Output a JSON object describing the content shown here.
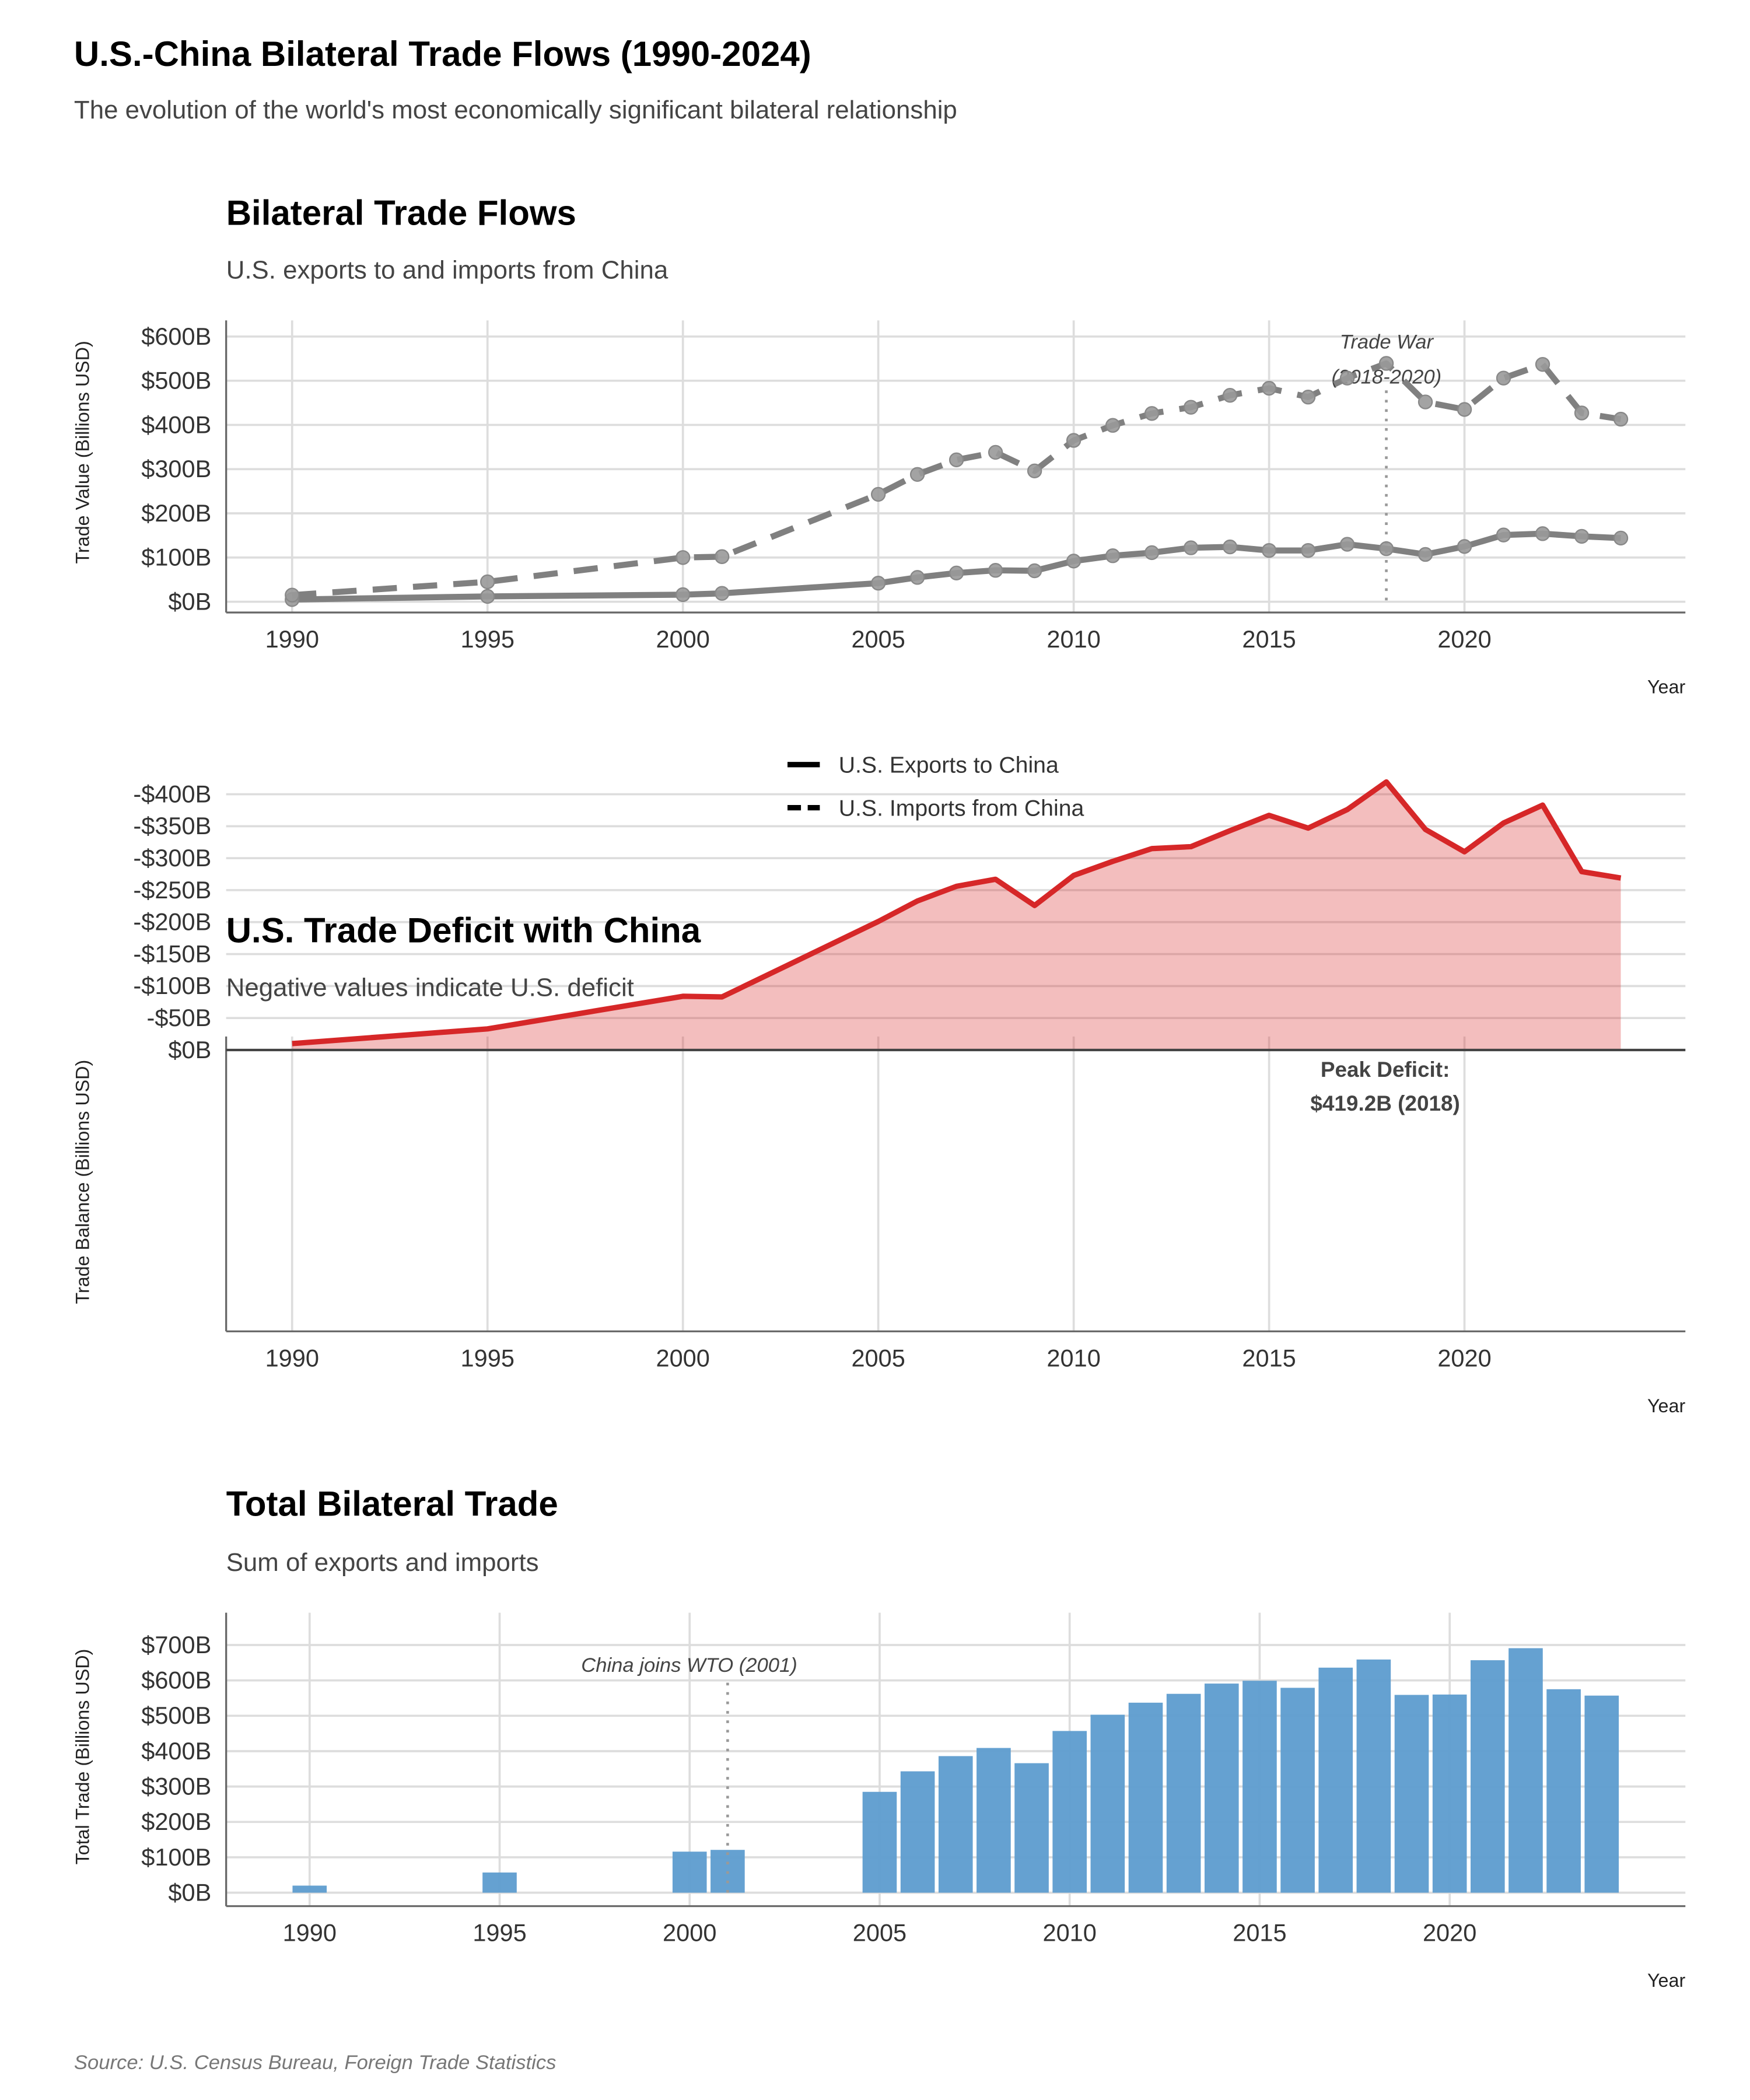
{
  "title": "U.S.-China Bilateral Trade Flows (1990-2024)",
  "subtitle": "The evolution of the world's most economically significant bilateral relationship",
  "source": "Source: U.S. Census Bureau, Foreign Trade Statistics",
  "colors": {
    "trade_lines": "#808080",
    "deficit_line": "#d62728",
    "deficit_fill": "#f2bfbf",
    "bars": "#5d9ccf"
  },
  "chart_data": [
    {
      "type": "line",
      "title": "Bilateral Trade Flows",
      "subtitle": "U.S. exports to and imports from China",
      "xlabel": "Year",
      "ylabel": "Trade Value (Billions USD)",
      "ylim": [
        0,
        600
      ],
      "yticks": [
        "$0B",
        "$100B",
        "$200B",
        "$300B",
        "$400B",
        "$500B",
        "$600B"
      ],
      "xticks": [
        "1990",
        "1995",
        "2000",
        "2005",
        "2010",
        "2015",
        "2020"
      ],
      "grid": true,
      "legend_position": "bottom",
      "x": [
        1990,
        1995,
        2000,
        2001,
        2005,
        2006,
        2007,
        2008,
        2009,
        2010,
        2011,
        2012,
        2013,
        2014,
        2015,
        2016,
        2017,
        2018,
        2019,
        2020,
        2021,
        2022,
        2023,
        2024
      ],
      "series": [
        {
          "name": "U.S. Exports to China",
          "style": "solid",
          "values": [
            5,
            12,
            16,
            19,
            42,
            55,
            65,
            71,
            70,
            92,
            104,
            111,
            122,
            124,
            116,
            116,
            130,
            120,
            107,
            125,
            151,
            154,
            148,
            144
          ]
        },
        {
          "name": "U.S. Imports from China",
          "style": "dashed",
          "values": [
            15,
            45,
            100,
            102,
            243,
            288,
            321,
            338,
            296,
            365,
            399,
            426,
            440,
            467,
            483,
            463,
            506,
            539.2,
            452,
            435,
            506,
            537,
            427,
            413
          ]
        }
      ],
      "annotation": {
        "text_line1": "Trade War",
        "text_line2": "(2018-2020)",
        "x": 2018
      }
    },
    {
      "type": "area",
      "title": "U.S. Trade Deficit with China",
      "subtitle": "Negative values indicate U.S. deficit",
      "xlabel": "Year",
      "ylabel": "Trade Balance (Billions USD)",
      "ylim": [
        -420,
        0
      ],
      "yticks": [
        "$0B",
        "-$50B",
        "-$100B",
        "-$150B",
        "-$200B",
        "-$250B",
        "-$300B",
        "-$350B",
        "-$400B"
      ],
      "xticks": [
        "1990",
        "1995",
        "2000",
        "2005",
        "2010",
        "2015",
        "2020"
      ],
      "grid": true,
      "x": [
        1990,
        1995,
        2000,
        2001,
        2005,
        2006,
        2007,
        2008,
        2009,
        2010,
        2011,
        2012,
        2013,
        2014,
        2015,
        2016,
        2017,
        2018,
        2019,
        2020,
        2021,
        2022,
        2023,
        2024
      ],
      "values": [
        -10,
        -33,
        -84,
        -83,
        -201,
        -233,
        -256,
        -267,
        -226,
        -273,
        -295,
        -315,
        -318,
        -343,
        -367,
        -347,
        -376,
        -419.2,
        -345,
        -310,
        -355,
        -383,
        -279,
        -269
      ],
      "annotation": {
        "text_line1": "Peak Deficit:",
        "text_line2": "$419.2B (2018)",
        "x": 2018
      }
    },
    {
      "type": "bar",
      "title": "Total Bilateral Trade",
      "subtitle": "Sum of exports and imports",
      "xlabel": "Year",
      "ylabel": "Total Trade (Billions USD)",
      "ylim": [
        0,
        700
      ],
      "yticks": [
        "$0B",
        "$100B",
        "$200B",
        "$300B",
        "$400B",
        "$500B",
        "$600B",
        "$700B"
      ],
      "xticks": [
        "1990",
        "1995",
        "2000",
        "2005",
        "2010",
        "2015",
        "2020"
      ],
      "grid": true,
      "x": [
        1990,
        1995,
        2000,
        2001,
        2005,
        2006,
        2007,
        2008,
        2009,
        2010,
        2011,
        2012,
        2013,
        2014,
        2015,
        2016,
        2017,
        2018,
        2019,
        2020,
        2021,
        2022,
        2023,
        2024
      ],
      "values": [
        20,
        57,
        116,
        121,
        285,
        343,
        386,
        409,
        366,
        457,
        503,
        537,
        562,
        591,
        599,
        579,
        636,
        659,
        559,
        560,
        657,
        691,
        575,
        557
      ],
      "annotation": {
        "text": "China joins WTO (2001)",
        "x": 2001
      }
    }
  ]
}
